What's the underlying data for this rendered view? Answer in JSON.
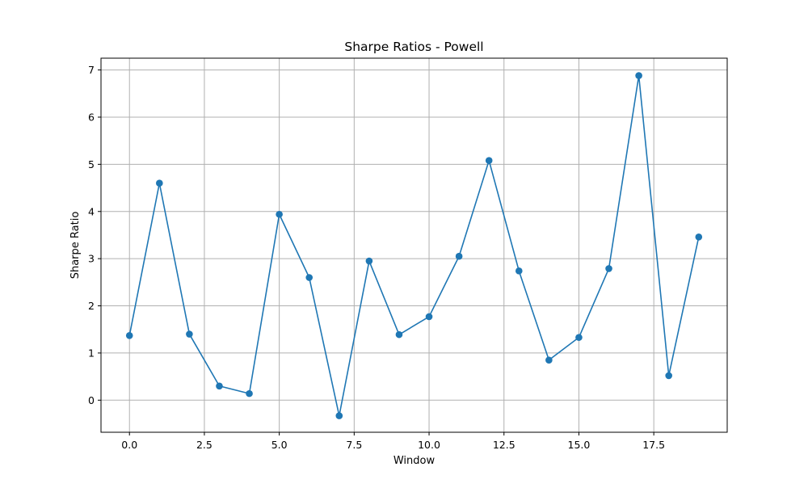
{
  "chart_data": {
    "type": "line",
    "title": "Sharpe Ratios - Powell",
    "xlabel": "Window",
    "ylabel": "Sharpe Ratio",
    "xlim": [
      -0.95,
      19.95
    ],
    "ylim": [
      -0.68,
      7.25
    ],
    "grid": true,
    "x_ticks": [
      0,
      2.5,
      5,
      7.5,
      10,
      12.5,
      15,
      17.5
    ],
    "x_tick_labels": [
      "0.0",
      "2.5",
      "5.0",
      "7.5",
      "10.0",
      "12.5",
      "15.0",
      "17.5"
    ],
    "y_ticks": [
      0,
      1,
      2,
      3,
      4,
      5,
      6,
      7
    ],
    "y_tick_labels": [
      "0",
      "1",
      "2",
      "3",
      "4",
      "5",
      "6",
      "7"
    ],
    "series": [
      {
        "color": "#1f77b4",
        "marker": "circle",
        "x": [
          0,
          1,
          2,
          3,
          4,
          5,
          6,
          7,
          8,
          9,
          10,
          11,
          12,
          13,
          14,
          15,
          16,
          17,
          18,
          19
        ],
        "y": [
          1.37,
          4.6,
          1.4,
          0.3,
          0.14,
          3.94,
          2.6,
          -0.33,
          2.95,
          1.39,
          1.77,
          3.05,
          5.08,
          2.74,
          0.85,
          1.33,
          2.79,
          6.88,
          0.52,
          3.46
        ]
      }
    ]
  }
}
